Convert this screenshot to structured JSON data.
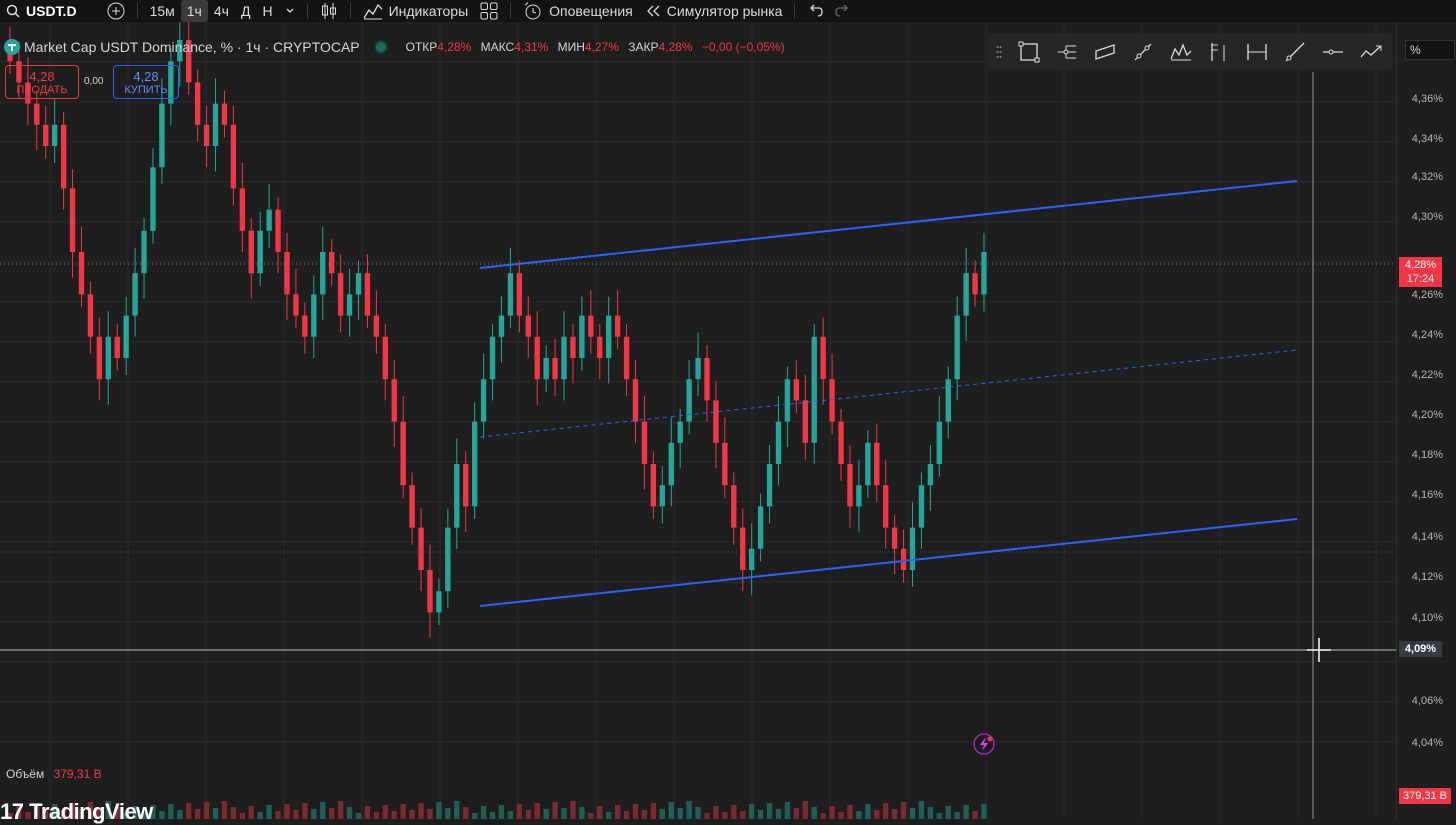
{
  "toolbar": {
    "symbol": "USDT.D",
    "timeframes": [
      "15м",
      "1ч",
      "4ч",
      "Д",
      "Н"
    ],
    "active_timeframe": "1ч",
    "indicators_label": "Индикаторы",
    "alerts_label": "Оповещения",
    "replay_label": "Симулятор рынка"
  },
  "legend": {
    "title": "Market Cap USDT Dominance, % · 1ч · CRYPTOCAP",
    "open_key": "ОТКР",
    "open_val": "4,28%",
    "high_key": "МАКС",
    "high_val": "4,31%",
    "low_key": "МИН",
    "low_val": "4,27%",
    "close_key": "ЗАКР",
    "close_val": "4,28%",
    "change": "−0,00 (−0,05%)"
  },
  "trade": {
    "sell_price": "4,28",
    "sell_label": "ПРОДАТЬ",
    "spread": "0,00",
    "buy_price": "4,28",
    "buy_label": "КУПИТЬ"
  },
  "price_axis": {
    "unit_label": "%",
    "ticks": [
      "4,36%",
      "4,34%",
      "4,32%",
      "4,30%",
      "4,26%",
      "4,24%",
      "4,22%",
      "4,20%",
      "4,18%",
      "4,16%",
      "4,14%",
      "4,12%",
      "4,10%",
      "4,06%",
      "4,04%"
    ],
    "last_price": "4,28%",
    "countdown": "17:24",
    "crosshair_price": "4,09%",
    "volume_tag": "379,31 B"
  },
  "volume": {
    "label": "Объём",
    "value": "379,31 B"
  },
  "brand": {
    "logo_text": "TradingView"
  },
  "colors": {
    "up": "#26a69a",
    "down": "#f23645",
    "channel": "#2962ff",
    "background": "#1e1e1e"
  },
  "chart_data": {
    "type": "candlestick",
    "y_unit": "%",
    "ylim": [
      4.03,
      4.38
    ],
    "close": [
      4.37,
      4.36,
      4.35,
      4.34,
      4.33,
      4.34,
      4.31,
      4.28,
      4.26,
      4.24,
      4.22,
      4.24,
      4.23,
      4.25,
      4.27,
      4.29,
      4.32,
      4.35,
      4.37,
      4.38,
      4.36,
      4.34,
      4.33,
      4.35,
      4.34,
      4.31,
      4.29,
      4.27,
      4.29,
      4.3,
      4.28,
      4.26,
      4.25,
      4.24,
      4.26,
      4.28,
      4.27,
      4.25,
      4.26,
      4.27,
      4.25,
      4.24,
      4.22,
      4.2,
      4.17,
      4.15,
      4.13,
      4.11,
      4.12,
      4.15,
      4.18,
      4.16,
      4.2,
      4.22,
      4.24,
      4.25,
      4.27,
      4.25,
      4.24,
      4.22,
      4.23,
      4.22,
      4.24,
      4.23,
      4.25,
      4.24,
      4.23,
      4.25,
      4.24,
      4.22,
      4.2,
      4.18,
      4.16,
      4.17,
      4.19,
      4.2,
      4.22,
      4.23,
      4.21,
      4.19,
      4.17,
      4.15,
      4.13,
      4.14,
      4.16,
      4.18,
      4.2,
      4.22,
      4.21,
      4.19,
      4.24,
      4.22,
      4.2,
      4.18,
      4.16,
      4.17,
      4.19,
      4.17,
      4.15,
      4.14,
      4.13,
      4.15,
      4.17,
      4.18,
      4.2,
      4.22,
      4.25,
      4.27,
      4.26,
      4.28
    ]
  }
}
